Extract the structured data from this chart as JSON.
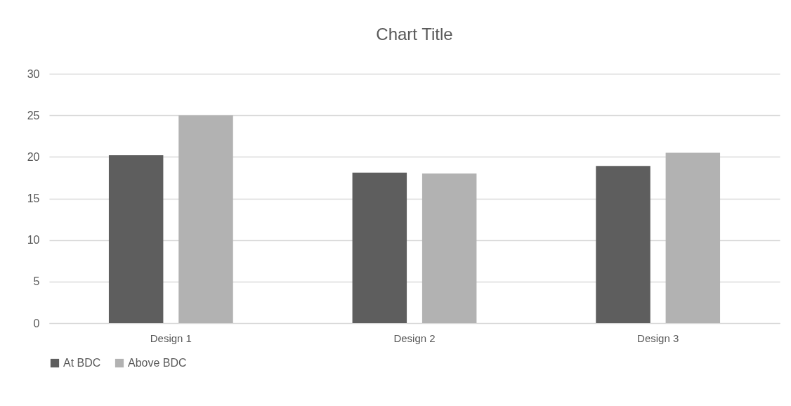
{
  "chart_data": {
    "type": "bar",
    "title": "Chart Title",
    "categories": [
      "Design 1",
      "Design 2",
      "Design 3"
    ],
    "series": [
      {
        "name": "At BDC",
        "color": "#5e5e5e",
        "values": [
          20.2,
          18.1,
          18.9
        ]
      },
      {
        "name": "Above BDC",
        "color": "#b2b2b2",
        "values": [
          25.0,
          18.0,
          20.5
        ]
      }
    ],
    "ylim": [
      0,
      30
    ],
    "yticks": [
      0,
      5,
      10,
      15,
      20,
      25,
      30
    ],
    "grid": "y",
    "legend": "bottom"
  }
}
